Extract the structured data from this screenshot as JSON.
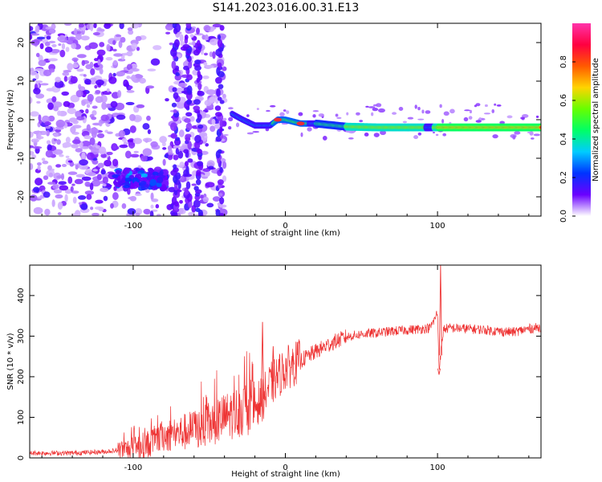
{
  "title": "S141.2023.016.00.31.E13",
  "chart_data": [
    {
      "type": "heatmap",
      "xlabel": "Height of straight line (km)",
      "ylabel": "Frequency (Hz)",
      "xlim": [
        -168,
        168
      ],
      "ylim": [
        -25,
        25
      ],
      "xticks": [
        -100,
        0,
        100
      ],
      "yticks": [
        -20,
        -10,
        0,
        10,
        20
      ],
      "colorbar": {
        "label": "Normalized spectral amplitude",
        "range": [
          0,
          1
        ],
        "ticks": [
          0.0,
          0.2,
          0.4,
          0.6,
          0.8
        ],
        "tick_labels": [
          "0.0",
          "0.2",
          "0.4",
          "0.6",
          "0.8"
        ],
        "colormap": [
          "#ffffff",
          "#6a00ff",
          "#0033ff",
          "#00ccff",
          "#00ff66",
          "#66ff00",
          "#ffd400",
          "#ff5a00",
          "#ff0040",
          "#ff33aa"
        ]
      },
      "features": {
        "ridge": [
          [
            -35,
            1.5
          ],
          [
            -28,
            0
          ],
          [
            -20,
            -1.5
          ],
          [
            -10,
            -1.5
          ],
          [
            -5,
            0
          ],
          [
            0,
            0
          ],
          [
            10,
            -1
          ],
          [
            20,
            -1
          ],
          [
            40,
            -1.8
          ],
          [
            60,
            -2
          ],
          [
            90,
            -2
          ],
          [
            95,
            -2
          ],
          [
            120,
            -2
          ],
          [
            168,
            -2
          ]
        ],
        "ridge_peak_x": [
          -5,
          10
        ],
        "low_band": {
          "x": [
            -112,
            -78
          ],
          "y": [
            -18,
            -13
          ]
        },
        "vertical_streaks": [
          -72,
          -64,
          -57,
          -43
        ],
        "noise_region_x": [
          -168,
          -40
        ]
      }
    },
    {
      "type": "line",
      "xlabel": "Height of straight line (km)",
      "ylabel": "SNR (10 * v/v)",
      "xlim": [
        -168,
        168
      ],
      "ylim": [
        0,
        475
      ],
      "xticks": [
        -100,
        0,
        100
      ],
      "yticks": [
        0,
        100,
        200,
        300,
        400
      ],
      "series": [
        {
          "color": "#ee3333",
          "points": [
            [
              -168,
              12
            ],
            [
              -140,
              12
            ],
            [
              -120,
              15
            ],
            [
              -100,
              22
            ],
            [
              -90,
              35
            ],
            [
              -80,
              55
            ],
            [
              -70,
              60
            ],
            [
              -60,
              70
            ],
            [
              -50,
              80
            ],
            [
              -40,
              100
            ],
            [
              -30,
              115
            ],
            [
              -20,
              130
            ],
            [
              -15,
              145
            ],
            [
              -10,
              180
            ],
            [
              -5,
              200
            ],
            [
              0,
              220
            ],
            [
              10,
              240
            ],
            [
              20,
              262
            ],
            [
              30,
              282
            ],
            [
              40,
              298
            ],
            [
              50,
              305
            ],
            [
              60,
              308
            ],
            [
              70,
              312
            ],
            [
              80,
              315
            ],
            [
              90,
              318
            ],
            [
              95,
              320
            ],
            [
              98,
              340
            ],
            [
              100,
              360
            ],
            [
              101,
              220
            ],
            [
              104,
              318
            ],
            [
              110,
              320
            ],
            [
              120,
              318
            ],
            [
              130,
              316
            ],
            [
              140,
              312
            ],
            [
              150,
              310
            ],
            [
              160,
              318
            ],
            [
              168,
              322
            ]
          ],
          "spikes": [
            [
              -15,
              335
            ],
            [
              -8,
              275
            ],
            [
              5,
              260
            ],
            [
              102,
              475
            ],
            [
              101,
              205
            ]
          ]
        }
      ]
    }
  ]
}
